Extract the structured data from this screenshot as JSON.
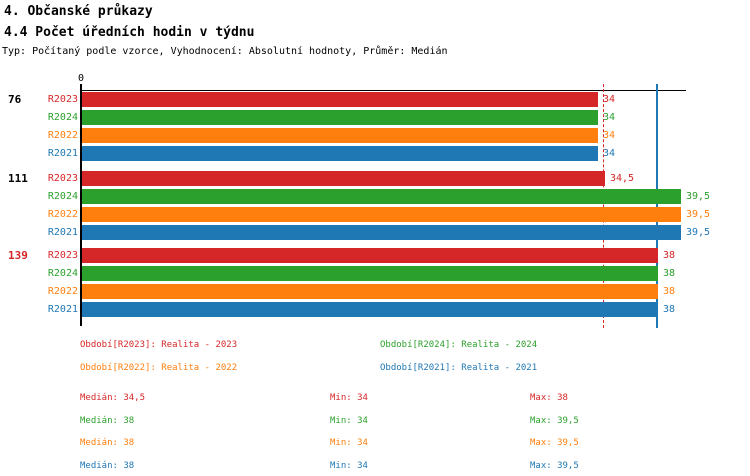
{
  "header": {
    "title1": "4. Občanské průkazy",
    "title2": "4.4 Počet úředních hodin v týdnu",
    "meta": "Typ: Počítaný podle vzorce, Vyhodnocení: Absolutní hodnoty, Průměr: Medián"
  },
  "chart_data": {
    "type": "bar",
    "orientation": "horizontal",
    "title": "4.4 Počet úředních hodin v týdnu",
    "xlabel": "",
    "ylabel": "",
    "xlim": [
      0,
      39.9
    ],
    "axis": {
      "origin_label": "0"
    },
    "series_order": [
      "R2023",
      "R2024",
      "R2022",
      "R2021"
    ],
    "series_colors": {
      "R2023": "#d62728",
      "R2024": "#2ca02c",
      "R2022": "#ff7f0e",
      "R2021": "#1f77b4"
    },
    "groups": [
      {
        "label": "76",
        "label_color": "#000000",
        "bars": [
          {
            "series": "R2023",
            "value": 34,
            "display": "34"
          },
          {
            "series": "R2024",
            "value": 34,
            "display": "34"
          },
          {
            "series": "R2022",
            "value": 34,
            "display": "34"
          },
          {
            "series": "R2021",
            "value": 34,
            "display": "34"
          }
        ]
      },
      {
        "label": "111",
        "label_color": "#000000",
        "bars": [
          {
            "series": "R2023",
            "value": 34.5,
            "display": "34,5"
          },
          {
            "series": "R2024",
            "value": 39.5,
            "display": "39,5"
          },
          {
            "series": "R2022",
            "value": 39.5,
            "display": "39,5"
          },
          {
            "series": "R2021",
            "value": 39.5,
            "display": "39,5"
          }
        ]
      },
      {
        "label": "139",
        "label_color": "#d62728",
        "bars": [
          {
            "series": "R2023",
            "value": 38,
            "display": "38"
          },
          {
            "series": "R2024",
            "value": 38,
            "display": "38"
          },
          {
            "series": "R2022",
            "value": 38,
            "display": "38"
          },
          {
            "series": "R2021",
            "value": 38,
            "display": "38"
          }
        ]
      }
    ],
    "guide_lines": [
      {
        "value": 34.5,
        "color": "#d62728",
        "style": "dashed"
      },
      {
        "value": 38,
        "color": "#1f77b4",
        "style": "solid"
      }
    ],
    "legend_position": "bottom",
    "grid": false
  },
  "legend": {
    "items": [
      {
        "label": "Období[R2023]: Realita - 2023",
        "color": "#d62728",
        "row": 0,
        "col": 0
      },
      {
        "label": "Období[R2024]: Realita - 2024",
        "color": "#2ca02c",
        "row": 0,
        "col": 1
      },
      {
        "label": "Období[R2022]: Realita - 2022",
        "color": "#ff7f0e",
        "row": 1,
        "col": 0
      },
      {
        "label": "Období[R2021]: Realita - 2021",
        "color": "#1f77b4",
        "row": 1,
        "col": 1
      }
    ]
  },
  "stats": {
    "labels": {
      "median": "Medián:",
      "min": "Min:",
      "max": "Max:"
    },
    "rows": [
      {
        "color": "#d62728",
        "median": "34,5",
        "min": "34",
        "max": "38"
      },
      {
        "color": "#2ca02c",
        "median": "38",
        "min": "34",
        "max": "39,5"
      },
      {
        "color": "#ff7f0e",
        "median": "38",
        "min": "34",
        "max": "39,5"
      },
      {
        "color": "#1f77b4",
        "median": "38",
        "min": "34",
        "max": "39,5"
      }
    ]
  }
}
